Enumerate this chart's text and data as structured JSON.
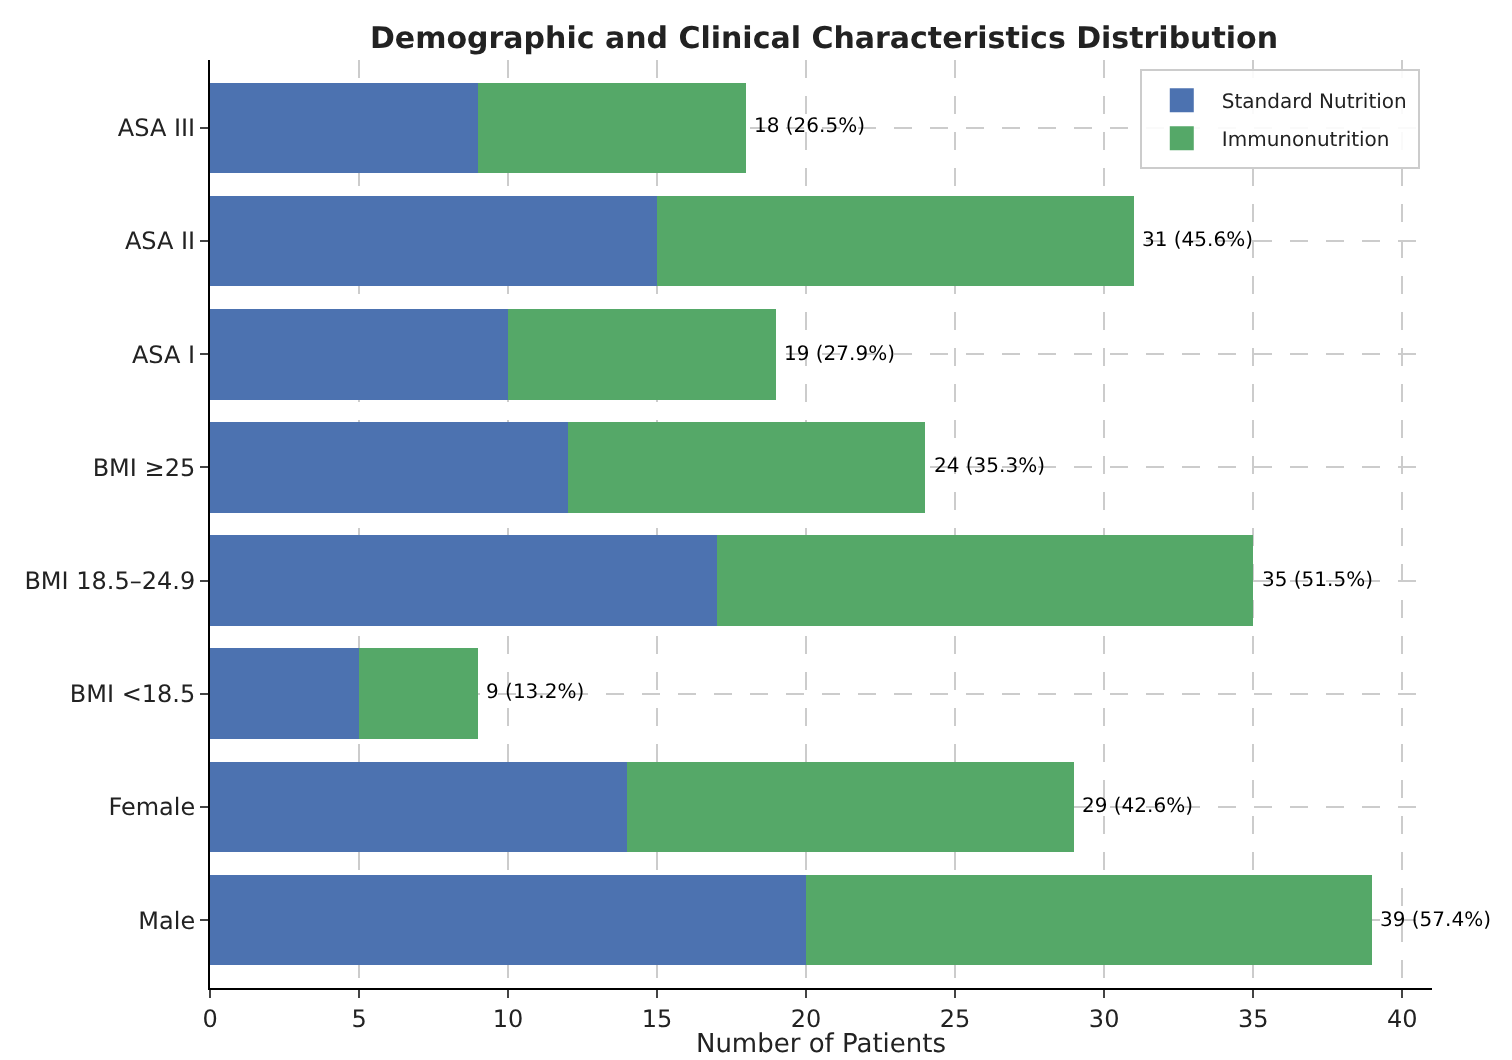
{
  "chart_data": {
    "type": "bar",
    "orientation": "horizontal",
    "stacked": true,
    "title": "Demographic and Clinical Characteristics Distribution",
    "xlabel": "Number of Patients",
    "categories": [
      "ASA III",
      "ASA II",
      "ASA I",
      "BMI ≥25",
      "BMI 18.5–24.9",
      "BMI <18.5",
      "Female",
      "Male"
    ],
    "series": [
      {
        "name": "Standard Nutrition",
        "color": "#4c72b0",
        "values": [
          9,
          15,
          10,
          12,
          17,
          5,
          14,
          20
        ]
      },
      {
        "name": "Immunonutrition",
        "color": "#55a868",
        "values": [
          9,
          16,
          9,
          12,
          18,
          4,
          15,
          19
        ]
      }
    ],
    "totals": [
      "18 (26.5%)",
      "31 (45.6%)",
      "19 (27.9%)",
      "24 (35.3%)",
      "35 (51.5%)",
      "9 (13.2%)",
      "29 (42.6%)",
      "39 (57.4%)"
    ],
    "xlim": [
      0,
      41
    ],
    "xticks": [
      0,
      5,
      10,
      15,
      20,
      25,
      30,
      35,
      40
    ],
    "grid": true,
    "legend": "top right"
  }
}
